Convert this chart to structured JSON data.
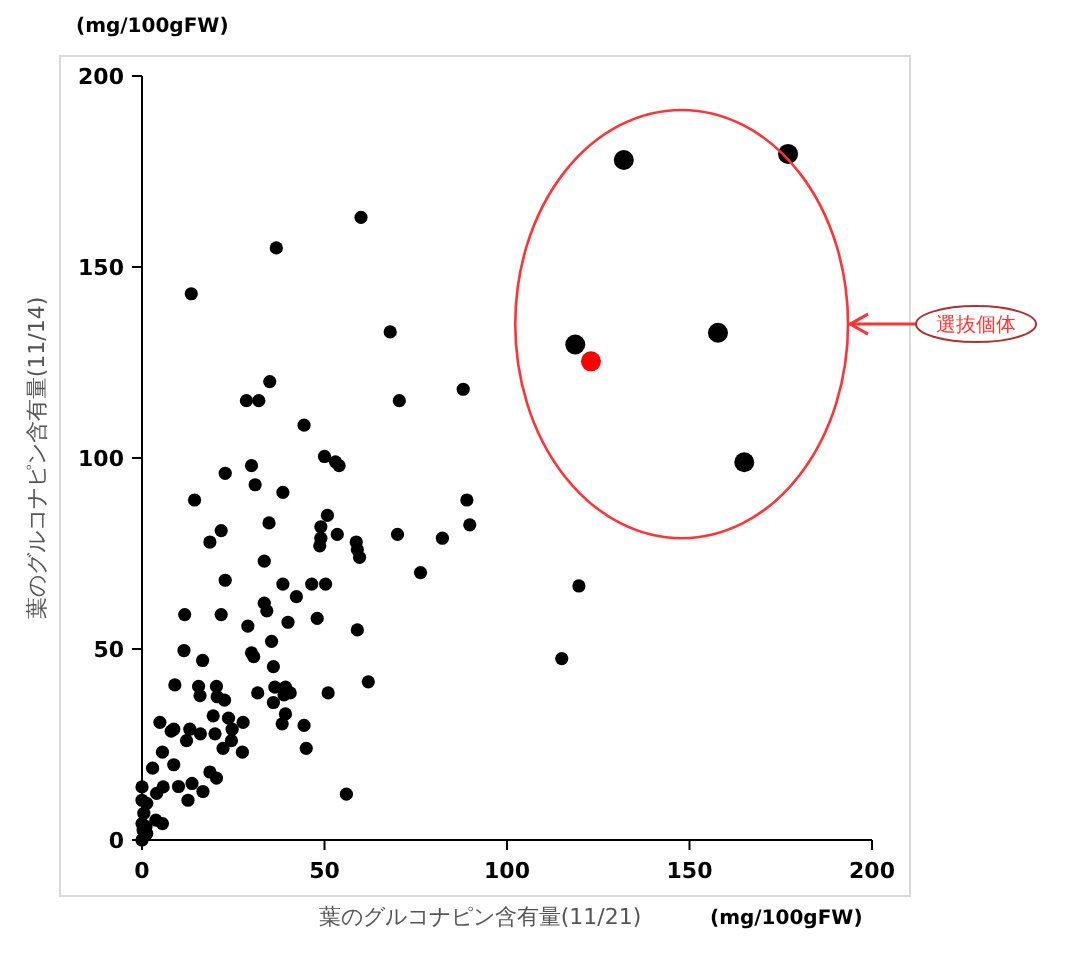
{
  "chart_data": {
    "type": "scatter",
    "xlabel": "葉のグルコナピン含有量(11/21)",
    "ylabel": "葉のグルコナピン含有量(11/14)",
    "xlim": [
      0,
      200
    ],
    "ylim": [
      0,
      200
    ],
    "xticks": [
      0,
      50,
      100,
      150,
      200
    ],
    "yticks": [
      0,
      50,
      100,
      150,
      200
    ],
    "grid": false,
    "marker": "circle",
    "annotations": [
      "選抜個体",
      "(mg/100gFW)",
      "(mg/100gFW)"
    ],
    "series": [
      {
        "color": "#000000",
        "x": [
          13.5,
          36.8,
          60,
          68,
          88,
          70.5,
          35,
          28.6,
          32,
          44.4,
          50,
          53,
          54,
          30,
          22.8,
          31,
          38.6,
          14.4,
          89,
          89.8,
          50.8,
          49,
          53.5,
          49,
          48.7,
          34.8,
          21.7,
          18.6,
          58.7,
          59,
          59.6,
          70,
          82.3,
          76.3,
          33.5,
          22.8,
          38.6,
          46.5,
          50.3,
          42.3,
          33.5,
          34.2,
          11.7,
          21.7,
          40,
          29,
          48,
          59,
          35.5,
          11.5,
          30,
          30.6,
          16.6,
          36,
          9,
          15.5,
          20.4,
          15.9,
          20.6,
          22.6,
          31.7,
          36.4,
          39.3,
          40.6,
          38.9,
          36,
          51,
          62,
          39.3,
          38.4,
          44.4,
          45,
          4.9,
          8,
          8.7,
          13.1,
          12.2,
          16,
          20,
          19.5,
          23.7,
          24.7,
          27.7,
          24.5,
          22.2,
          27.5,
          5.6,
          2.9,
          8.7,
          10,
          13.7,
          16.7,
          20.4,
          12.6,
          18.6,
          56,
          0,
          0,
          1.3,
          4,
          5.8,
          0.5,
          0,
          1.1,
          3.8,
          5.6,
          0,
          1.3,
          0.3,
          119.7,
          115
        ],
        "values": [
          143,
          155,
          163,
          133,
          118,
          115,
          120,
          115,
          115,
          108.6,
          100.4,
          99,
          98,
          98,
          96,
          93,
          91,
          89,
          89,
          82.5,
          85,
          82,
          80,
          79,
          77,
          83,
          81,
          78,
          78,
          76,
          74,
          80,
          79,
          70,
          73,
          68,
          67,
          67,
          67,
          63.7,
          62,
          60,
          59,
          59,
          57,
          56,
          58,
          55,
          52,
          49.6,
          49,
          48,
          47,
          45.4,
          40.6,
          40.2,
          40.2,
          37.8,
          37.5,
          36.6,
          38.5,
          40,
          40,
          38.5,
          38,
          36,
          38.5,
          41.4,
          33,
          30.4,
          30,
          24,
          30.8,
          28.5,
          29,
          29,
          26,
          27.8,
          27.8,
          32.5,
          31.9,
          29,
          30.8,
          26,
          24,
          23,
          23,
          18.8,
          19.7,
          14,
          14.8,
          12.7,
          16.2,
          10.4,
          17.8,
          12,
          13.9,
          10.4,
          9.6,
          12.2,
          13.9,
          7,
          4.3,
          3.5,
          5.2,
          4.3,
          0,
          1.7,
          2.6,
          66.5,
          47.5
        ]
      },
      {
        "color": "#000000",
        "x": [
          132,
          177,
          118.7,
          157.8,
          165
        ],
        "values": [
          178,
          179.6,
          129.7,
          132.8,
          98.9
        ]
      },
      {
        "color": "#ff0000",
        "x": [
          123
        ],
        "values": [
          125.3
        ]
      }
    ]
  }
}
